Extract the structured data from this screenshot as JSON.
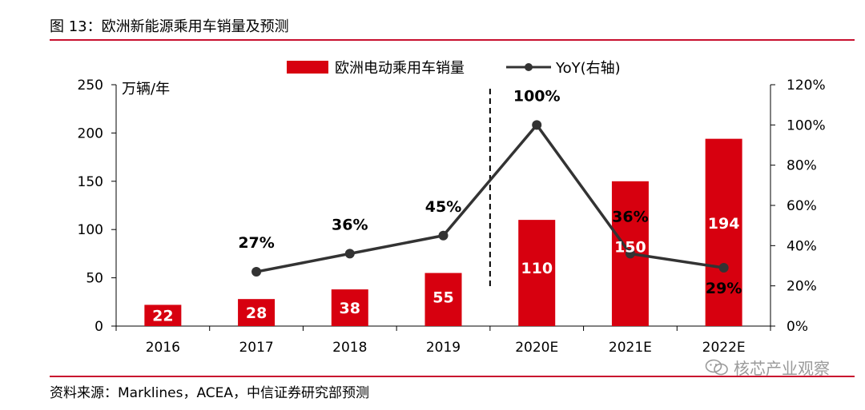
{
  "figure": {
    "title": "图 13：欧洲新能源乘用车销量及预测",
    "source": "资料来源：Marklines，ACEA，中信证券研究部预测",
    "watermark": "核芯产业观察"
  },
  "colors": {
    "bar": "#d7000f",
    "line": "#333333",
    "rule": "#c8102e"
  },
  "chart_data": {
    "type": "bar",
    "categories": [
      "2016",
      "2017",
      "2018",
      "2019",
      "2020E",
      "2021E",
      "2022E"
    ],
    "series": [
      {
        "name": "欧洲电动乘用车销量",
        "type": "bar",
        "axis": "left",
        "values": [
          22,
          28,
          38,
          55,
          110,
          150,
          194
        ],
        "labels": [
          "22",
          "28",
          "38",
          "55",
          "110",
          "150",
          "194"
        ]
      },
      {
        "name": "YoY(右轴)",
        "type": "line",
        "axis": "right",
        "values": [
          null,
          27,
          36,
          45,
          100,
          36,
          29
        ],
        "labels": [
          "",
          "27%",
          "36%",
          "45%",
          "100%",
          "36%",
          "29%"
        ]
      }
    ],
    "y_left": {
      "unit": "万辆/年",
      "ylim": [
        0,
        250
      ],
      "ticks": [
        "0",
        "50",
        "100",
        "150",
        "200",
        "250"
      ]
    },
    "y_right": {
      "ylim": [
        0,
        120
      ],
      "ticks": [
        "0%",
        "20%",
        "40%",
        "60%",
        "80%",
        "100%",
        "120%"
      ]
    },
    "grid": false,
    "legend": "top",
    "annotations": [
      "dashed vertical separator between 2019 and 2020E"
    ]
  }
}
